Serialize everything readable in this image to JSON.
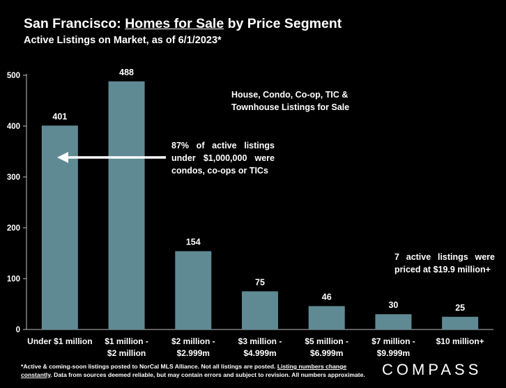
{
  "title": {
    "prefix": "San Francisco: ",
    "underlined": "Homes for Sale",
    "suffix": " by Price Segment"
  },
  "subtitle": "Active Listings on Market, as of 6/1/2023*",
  "colors": {
    "background": "#000000",
    "bar": "#5f8a94",
    "axis": "#bfbfbf",
    "text": "#ffffff"
  },
  "chart_data": {
    "type": "bar",
    "categories": [
      [
        "Under $1 million"
      ],
      [
        "$1 million -",
        "$2 million"
      ],
      [
        "$2 million -",
        "$2.999m"
      ],
      [
        "$3 million -",
        "$4.999m"
      ],
      [
        "$5 million -",
        "$6.999m"
      ],
      [
        "$7 million -",
        "$9.999m"
      ],
      [
        "$10 million+"
      ]
    ],
    "values": [
      401,
      488,
      154,
      75,
      46,
      30,
      25
    ],
    "ylim": [
      0,
      500
    ],
    "yticks": [
      0,
      100,
      200,
      300,
      400,
      500
    ],
    "grid": false,
    "xlabel": "",
    "ylabel": ""
  },
  "annotations": {
    "house_types": [
      "House, Condo, Co-op, TIC &",
      "Townhouse Listings for Sale"
    ],
    "under_1m": [
      "87%  of  active  listings",
      "under  $1,000,000  were",
      "condos, co-ops or TICs"
    ],
    "over_19m": [
      "7   active   listings   were",
      "priced at $19.9 million+"
    ]
  },
  "footer": {
    "part1": "*Active & coming-soon listings posted to NorCal MLS Alliance. Not all listings are posted. ",
    "underlined": "Listing numbers change constantly",
    "part2": ". Data from sources deemed reliable, but may contain errors and subject to revision. All numbers approximate."
  },
  "logo": "COMPASS"
}
